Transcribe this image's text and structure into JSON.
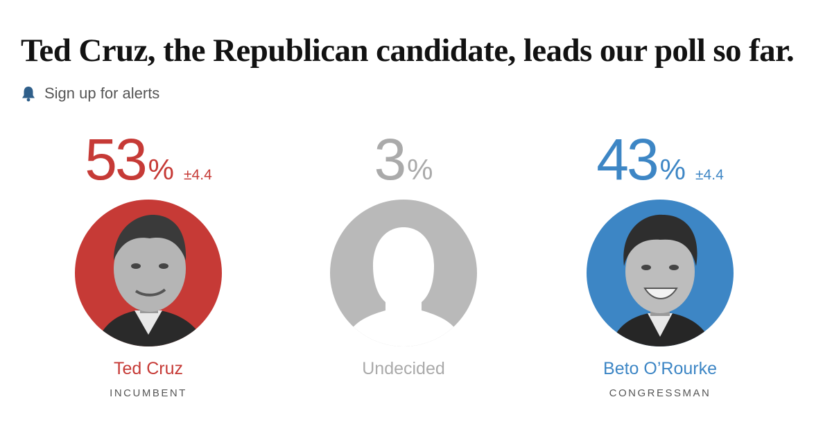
{
  "headline": "Ted Cruz, the Republican candidate, leads our poll so far.",
  "alerts": {
    "label": "Sign up for alerts",
    "icon": "bell-icon"
  },
  "colors": {
    "republican": "#c63a36",
    "democrat": "#3d86c5",
    "undecided": "#aaaaaa",
    "subtitle": "#555555"
  },
  "candidates": [
    {
      "name": "Ted Cruz",
      "title": "INCUMBENT",
      "percent": "53",
      "percent_sign": "%",
      "margin": "±4.4"
    },
    {
      "name": "Undecided",
      "title": "",
      "percent": "3",
      "percent_sign": "%",
      "margin": ""
    },
    {
      "name": "Beto O’Rourke",
      "title": "CONGRESSMAN",
      "percent": "43",
      "percent_sign": "%",
      "margin": "±4.4"
    }
  ]
}
